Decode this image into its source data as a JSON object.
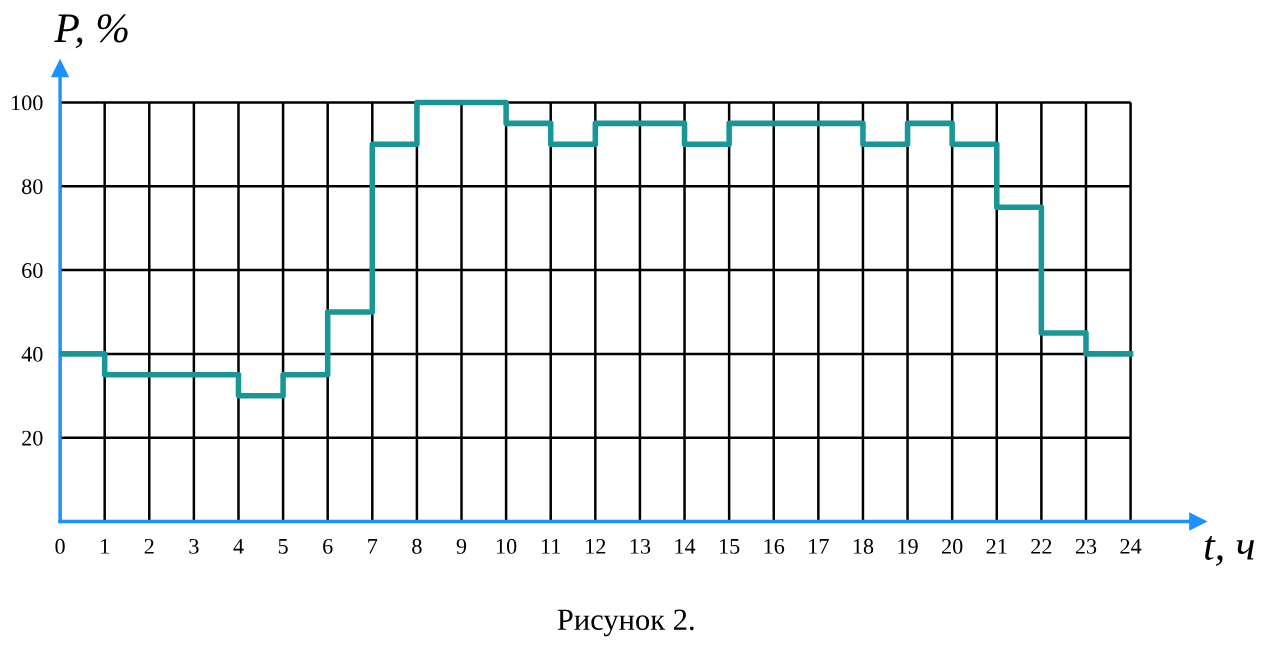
{
  "chart_data": {
    "type": "step",
    "ylabel": "P, %",
    "xlabel": "t, ч",
    "annotations": [
      "Рисунок 2."
    ],
    "x": [
      0,
      1,
      2,
      3,
      4,
      5,
      6,
      7,
      8,
      9,
      10,
      11,
      12,
      13,
      14,
      15,
      16,
      17,
      18,
      19,
      20,
      21,
      22,
      23,
      24
    ],
    "series": [
      {
        "color": "#1a9696",
        "values": [
          40,
          35,
          35,
          35,
          30,
          35,
          50,
          90,
          100,
          100,
          95,
          90,
          95,
          95,
          90,
          95,
          95,
          95,
          90,
          95,
          90,
          75,
          45,
          40,
          40
        ]
      }
    ],
    "xlim": [
      0,
      25.5
    ],
    "ylim": [
      0,
      108
    ],
    "xticks": [
      0,
      1,
      2,
      3,
      4,
      5,
      6,
      7,
      8,
      9,
      10,
      11,
      12,
      13,
      14,
      15,
      16,
      17,
      18,
      19,
      20,
      21,
      22,
      23,
      24
    ],
    "yticks": [
      20,
      40,
      60,
      80,
      100
    ],
    "grid": true
  }
}
